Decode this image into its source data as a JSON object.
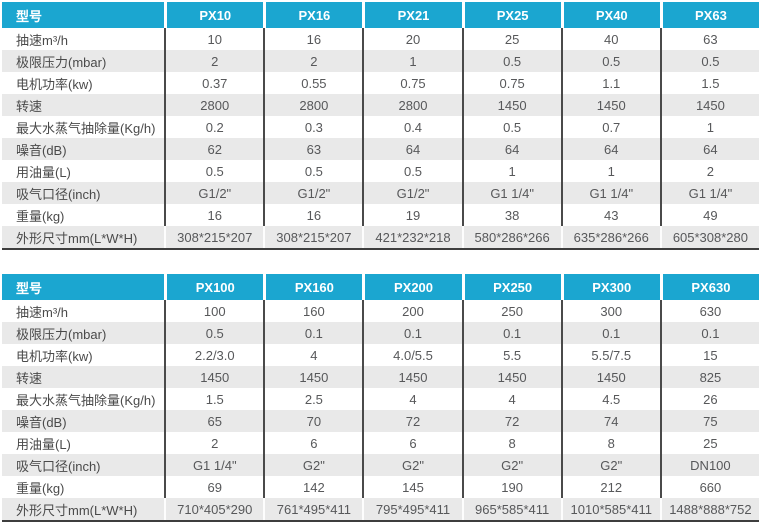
{
  "colors": {
    "header_bg": "#1ba6d0",
    "stripe_row_bg": "#e9e9e9",
    "column_separator": "#4a4a4a",
    "bottom_border": "#3e3e3e",
    "header_text": "#ffffff",
    "label_text": "#4a4a4a",
    "value_text": "#57585a"
  },
  "tables": [
    {
      "header": {
        "label": "型号",
        "models": [
          "PX10",
          "PX16",
          "PX21",
          "PX25",
          "PX40",
          "PX63"
        ]
      },
      "rows": [
        {
          "label": "抽速m³/h",
          "values": [
            "10",
            "16",
            "20",
            "25",
            "40",
            "63"
          ]
        },
        {
          "label": "极限压力(mbar)",
          "values": [
            "2",
            "2",
            "1",
            "0.5",
            "0.5",
            "0.5"
          ]
        },
        {
          "label": "电机功率(kw)",
          "values": [
            "0.37",
            "0.55",
            "0.75",
            "0.75",
            "1.1",
            "1.5"
          ]
        },
        {
          "label": "转速",
          "values": [
            "2800",
            "2800",
            "2800",
            "1450",
            "1450",
            "1450"
          ]
        },
        {
          "label": "最大水蒸气抽除量(Kg/h)",
          "values": [
            "0.2",
            "0.3",
            "0.4",
            "0.5",
            "0.7",
            "1"
          ]
        },
        {
          "label": "噪音(dB)",
          "values": [
            "62",
            "63",
            "64",
            "64",
            "64",
            "64"
          ]
        },
        {
          "label": "用油量(L)",
          "values": [
            "0.5",
            "0.5",
            "0.5",
            "1",
            "1",
            "2"
          ]
        },
        {
          "label": "吸气口径(inch)",
          "values": [
            "G1/2\"",
            "G1/2\"",
            "G1/2\"",
            "G1 1/4\"",
            "G1 1/4\"",
            "G1 1/4\""
          ]
        },
        {
          "label": "重量(kg)",
          "values": [
            "16",
            "16",
            "19",
            "38",
            "43",
            "49"
          ]
        },
        {
          "label": "外形尺寸mm(L*W*H)",
          "values": [
            "308*215*207",
            "308*215*207",
            "421*232*218",
            "580*286*266",
            "635*286*266",
            "605*308*280"
          ]
        }
      ]
    },
    {
      "header": {
        "label": "型号",
        "models": [
          "PX100",
          "PX160",
          "PX200",
          "PX250",
          "PX300",
          "PX630"
        ]
      },
      "rows": [
        {
          "label": "抽速m³/h",
          "values": [
            "100",
            "160",
            "200",
            "250",
            "300",
            "630"
          ]
        },
        {
          "label": "极限压力(mbar)",
          "values": [
            "0.5",
            "0.1",
            "0.1",
            "0.1",
            "0.1",
            "0.1"
          ]
        },
        {
          "label": "电机功率(kw)",
          "values": [
            "2.2/3.0",
            "4",
            "4.0/5.5",
            "5.5",
            "5.5/7.5",
            "15"
          ]
        },
        {
          "label": "转速",
          "values": [
            "1450",
            "1450",
            "1450",
            "1450",
            "1450",
            "825"
          ]
        },
        {
          "label": "最大水蒸气抽除量(Kg/h)",
          "values": [
            "1.5",
            "2.5",
            "4",
            "4",
            "4.5",
            "26"
          ]
        },
        {
          "label": "噪音(dB)",
          "values": [
            "65",
            "70",
            "72",
            "72",
            "74",
            "75"
          ]
        },
        {
          "label": "用油量(L)",
          "values": [
            "2",
            "6",
            "6",
            "8",
            "8",
            "25"
          ]
        },
        {
          "label": "吸气口径(inch)",
          "values": [
            "G1 1/4\"",
            "G2\"",
            "G2\"",
            "G2\"",
            "G2\"",
            "DN100"
          ]
        },
        {
          "label": "重量(kg)",
          "values": [
            "69",
            "142",
            "145",
            "190",
            "212",
            "660"
          ]
        },
        {
          "label": "外形尺寸mm(L*W*H)",
          "values": [
            "710*405*290",
            "761*495*411",
            "795*495*411",
            "965*585*411",
            "1010*585*411",
            "1488*888*752"
          ]
        }
      ]
    }
  ]
}
